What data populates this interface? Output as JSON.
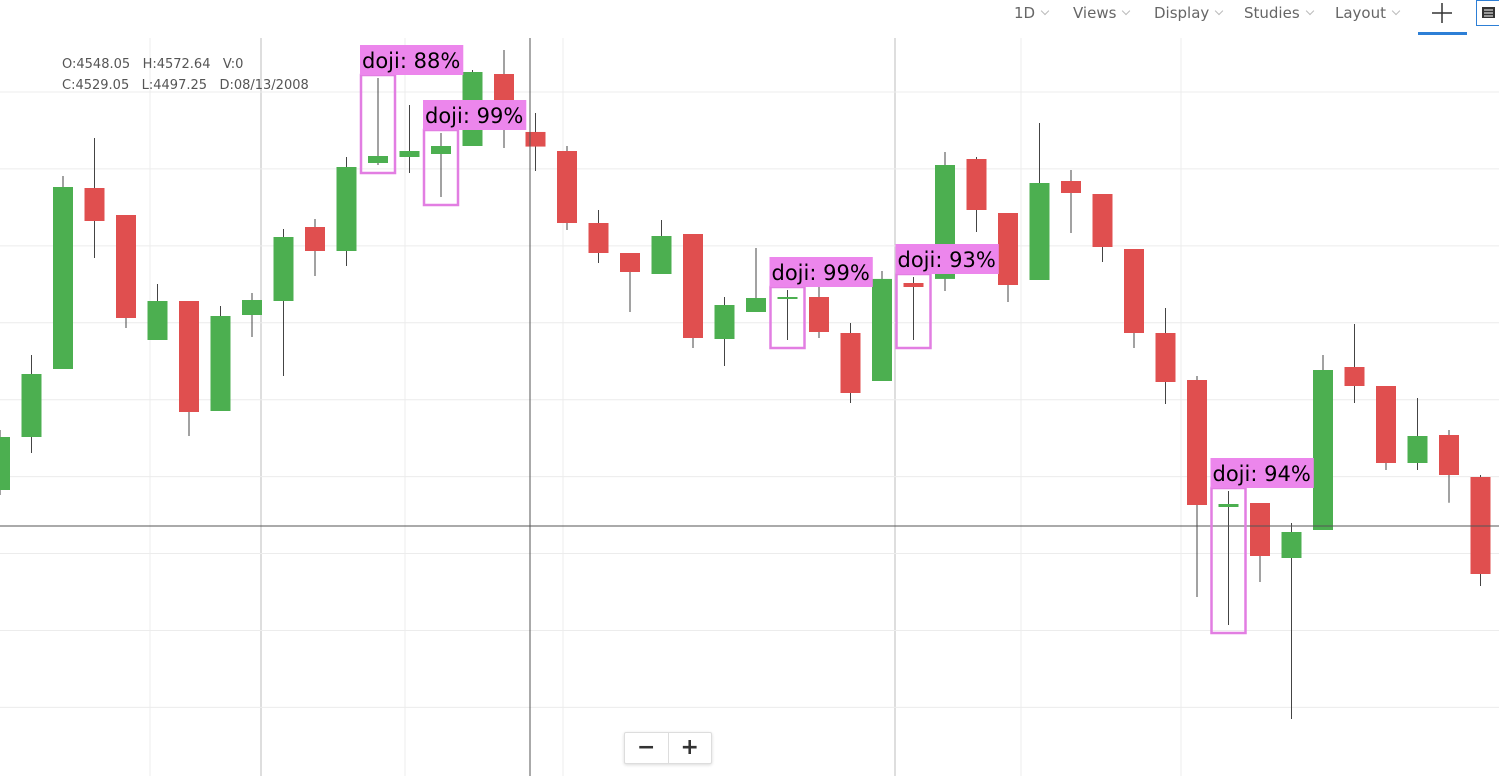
{
  "toolbar": {
    "items": [
      "1D",
      "Views",
      "Display",
      "Studies",
      "Layout"
    ]
  },
  "readout": {
    "labels": [
      "O:",
      "H:",
      "V:",
      "C:",
      "L:",
      "D:"
    ],
    "values": [
      4548.05,
      4572.64,
      0,
      4529.05,
      4497.25,
      "08/13/2008"
    ]
  },
  "zoom_controls": [
    "−",
    "+"
  ],
  "chart_data": {
    "type": "candlestick",
    "up_color": "#4caf50",
    "down_color": "#e04f4f",
    "grid": true,
    "ylim": [
      3710.8,
      4670.2
    ],
    "ygrid": [
      4600,
      4500,
      4400,
      4300,
      4200,
      4100,
      4000,
      3900,
      3800
    ],
    "open": [
      4082.6,
      4151.5,
      4239.9,
      4475.2,
      4440.1,
      4277.6,
      4328.3,
      4185.3,
      4310.1,
      4328.3,
      4424.5,
      4393.3,
      4507.7,
      4515.5,
      4519.4,
      4529.8,
      4623.4,
      4548.05,
      4523.3,
      4429.7,
      4390.7,
      4363.4,
      4415.4,
      4278.9,
      4314.0,
      4330.9,
      4333.5,
      4286.7,
      4224.3,
      4351.7,
      4357.0,
      4512.9,
      4442.7,
      4355.6,
      4484.3,
      4467.4,
      4395.9,
      4286.7,
      4225.6,
      4060.5,
      4065.7,
      3994.2,
      4030.6,
      4242.5,
      4217.8,
      4117.7,
      4154.1,
      4099.5
    ],
    "high": [
      4160.6,
      4258.1,
      4490.8,
      4540.2,
      4440.1,
      4350.4,
      4328.3,
      4321.8,
      4338.7,
      4421.9,
      4434.9,
      4515.5,
      4618.2,
      4583.1,
      4546.7,
      4628.6,
      4654.6,
      4572.64,
      4529.8,
      4446.6,
      4390.7,
      4433.6,
      4415.4,
      4333.5,
      4397.2,
      4342.6,
      4363.4,
      4299.7,
      4367.3,
      4359.5,
      4522.0,
      4515.5,
      4442.7,
      4559.7,
      4498.6,
      4467.4,
      4395.9,
      4319.2,
      4230.8,
      4081.3,
      4065.7,
      4039.7,
      4258.1,
      4298.4,
      4217.8,
      4202.2,
      4160.6,
      4102.1
    ],
    "low": [
      4076.1,
      4130.7,
      4239.9,
      4384.2,
      4293.2,
      4277.6,
      4152.8,
      4185.3,
      4281.5,
      4230.8,
      4360.8,
      4373.8,
      4505.1,
      4494.7,
      4463.5,
      4529.8,
      4527.2,
      4497.25,
      4420.6,
      4377.7,
      4314.0,
      4363.4,
      4267.2,
      4243.8,
      4314.0,
      4277.6,
      4280.2,
      4195.7,
      4224.3,
      4277.6,
      4341.3,
      4418.0,
      4327.0,
      4355.6,
      4416.7,
      4379.0,
      4267.2,
      4194.4,
      3943.5,
      3907.1,
      3963.0,
      3784.9,
      4030.6,
      4195.7,
      4108.6,
      4108.6,
      4066.0,
      3957.8
    ],
    "close": [
      4151.5,
      4233.4,
      4476.5,
      4432.3,
      4306.2,
      4328.3,
      4184.0,
      4308.8,
      4329.6,
      4411.5,
      4393.3,
      4502.5,
      4516.8,
      4523.3,
      4529.8,
      4626.0,
      4553.2,
      4529.05,
      4429.7,
      4390.7,
      4366.0,
      4412.8,
      4280.2,
      4323.1,
      4332.2,
      4333.5,
      4288.0,
      4208.7,
      4357.0,
      4346.5,
      4505.1,
      4446.6,
      4349.1,
      4481.7,
      4468.7,
      4398.5,
      4286.7,
      4223.0,
      4063.1,
      4064.4,
      3996.8,
      4028.0,
      4238.6,
      4217.8,
      4117.7,
      4152.8,
      4102.1,
      3973.4
    ],
    "pattern_labels": [
      null,
      null,
      null,
      null,
      null,
      null,
      null,
      null,
      null,
      null,
      null,
      null,
      "doji: 88%",
      null,
      "doji: 99%",
      null,
      null,
      null,
      null,
      null,
      null,
      null,
      null,
      null,
      null,
      "doji: 99%",
      null,
      null,
      null,
      "doji: 93%",
      null,
      null,
      null,
      null,
      null,
      null,
      null,
      null,
      null,
      "doji: 94%",
      null,
      null,
      null,
      null,
      null,
      null,
      null,
      null
    ]
  }
}
